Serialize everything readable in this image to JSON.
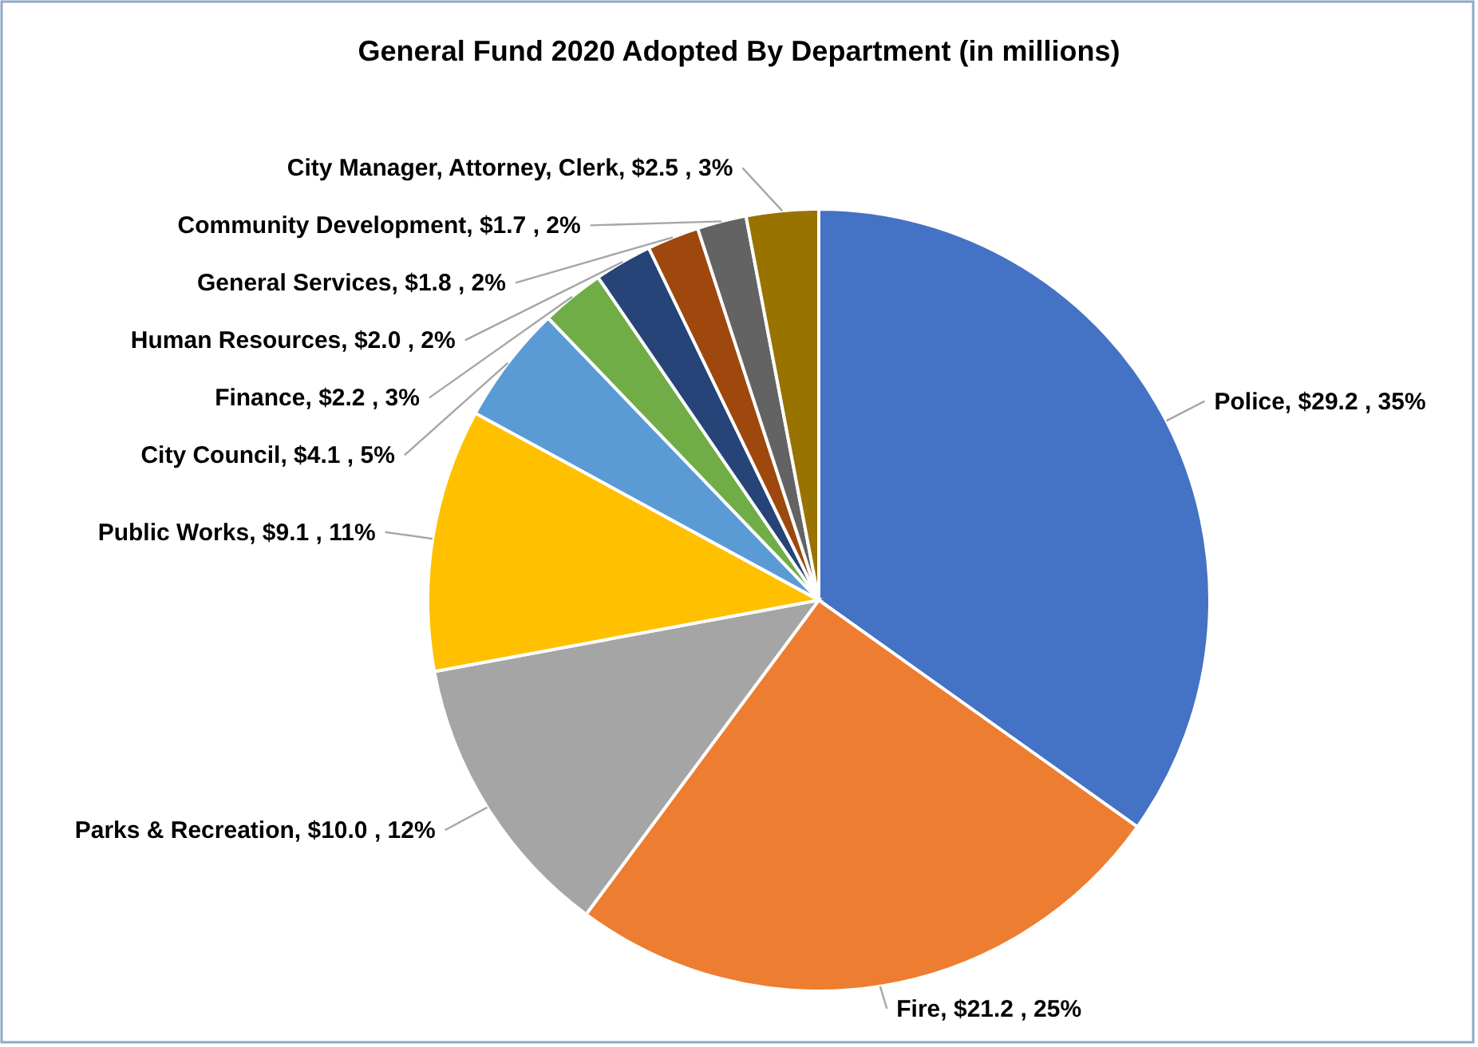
{
  "chart_data": {
    "type": "pie",
    "title": "General Fund 2020 Adopted By Department (in millions)",
    "categories": [
      "Police",
      "Fire",
      "Parks & Recreation",
      "Public Works",
      "City Council",
      "Finance",
      "Human Resources",
      "General Services",
      "Community Development",
      "City Manager, Attorney, Clerk"
    ],
    "values": [
      29.2,
      21.2,
      10.0,
      9.1,
      4.1,
      2.2,
      2.0,
      1.8,
      1.7,
      2.5
    ],
    "value_labels": [
      "$29.2 , 35%",
      "$21.2 , 25%",
      "$10.0 , 12%",
      "$9.1 , 11%",
      "$4.1 , 5%",
      "$2.2 , 3%",
      "$2.0 , 2%",
      "$1.8 , 2%",
      "$1.7 , 2%",
      "$2.5 , 3%"
    ],
    "colors": [
      "#4472c4",
      "#ed7d31",
      "#a5a5a5",
      "#ffc000",
      "#5b9bd5",
      "#70ad47",
      "#264478",
      "#9e480e",
      "#636363",
      "#997300"
    ]
  }
}
